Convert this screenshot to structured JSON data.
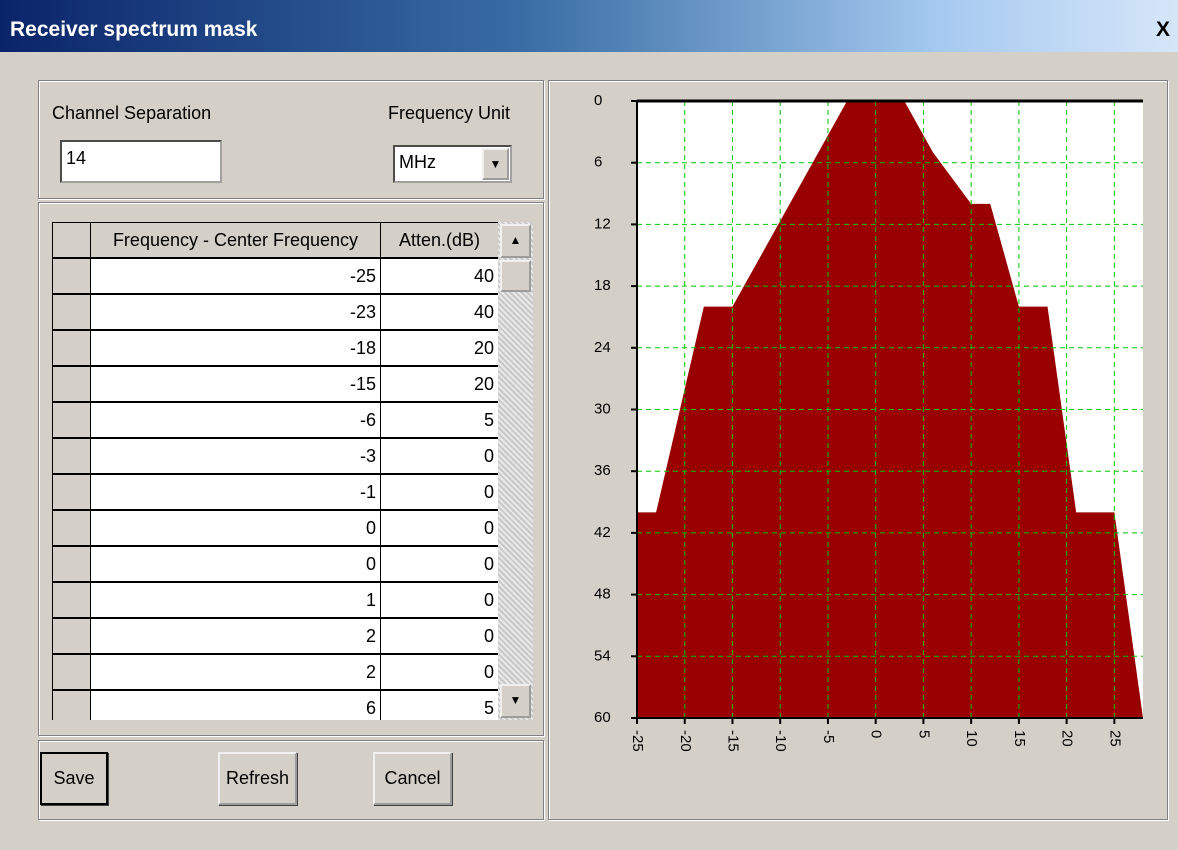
{
  "window": {
    "title": "Receiver spectrum mask",
    "close": "X"
  },
  "form": {
    "channel_separation_label": "Channel Separation",
    "channel_separation": 14,
    "frequency_unit_label": "Frequency Unit",
    "frequency_unit": "MHz"
  },
  "table": {
    "columns": [
      "Frequency - Center Frequency",
      "Atten.(dB)"
    ],
    "rows": [
      [
        -25,
        40
      ],
      [
        -23,
        40
      ],
      [
        -18,
        20
      ],
      [
        -15,
        20
      ],
      [
        -6,
        5
      ],
      [
        -3,
        0
      ],
      [
        -1,
        0
      ],
      [
        0,
        0
      ],
      [
        0,
        0
      ],
      [
        1,
        0
      ],
      [
        2,
        0
      ],
      [
        2,
        0
      ],
      [
        6,
        5
      ]
    ]
  },
  "buttons": [
    "Save",
    "Refresh",
    "Cancel"
  ],
  "chart_data": {
    "type": "area",
    "x": [
      -25,
      -23,
      -18,
      -15,
      -3,
      3,
      6,
      10,
      12,
      15,
      18,
      21,
      25,
      28
    ],
    "values": [
      40,
      40,
      20,
      20,
      0,
      0,
      5,
      10,
      10,
      20,
      20,
      40,
      40,
      60
    ],
    "color": "#990000",
    "xlim": [
      -25,
      28
    ],
    "ylim": [
      0,
      60
    ],
    "y_inverted": true,
    "xticks": [
      -25,
      -20,
      -15,
      -10,
      -5,
      0,
      5,
      10,
      15,
      20,
      25
    ],
    "yticks": [
      0,
      6,
      12,
      18,
      24,
      30,
      36,
      42,
      48,
      54,
      60
    ],
    "grid": true,
    "grid_color": "#00c800"
  }
}
